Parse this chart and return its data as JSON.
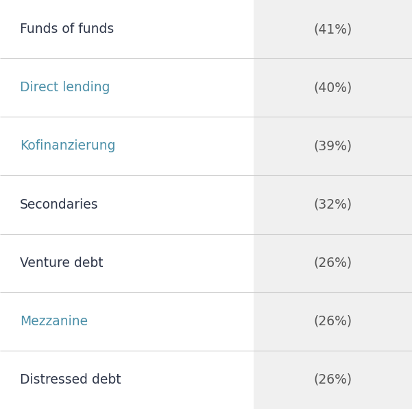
{
  "rows": [
    {
      "label": "Funds of funds",
      "value": "(41%)",
      "label_color": "#2d3548"
    },
    {
      "label": "Direct lending",
      "value": "(40%)",
      "label_color": "#4a8fa8"
    },
    {
      "label": "Kofinanzierung",
      "value": "(39%)",
      "label_color": "#4a8fa8"
    },
    {
      "label": "Secondaries",
      "value": "(32%)",
      "label_color": "#2d3548"
    },
    {
      "label": "Venture debt",
      "value": "(26%)",
      "label_color": "#2d3548"
    },
    {
      "label": "Mezzanine",
      "value": "(26%)",
      "label_color": "#4a8fa8"
    },
    {
      "label": "Distressed debt",
      "value": "(26%)",
      "label_color": "#2d3548"
    }
  ],
  "left_bg": "#ffffff",
  "right_bg": "#f0f0f0",
  "value_color": "#555555",
  "divider_color": "#cccccc",
  "label_fontsize": 13.5,
  "value_fontsize": 13.5,
  "col_split": 0.615,
  "fig_width": 6.01,
  "fig_height": 5.96,
  "dpi": 100
}
